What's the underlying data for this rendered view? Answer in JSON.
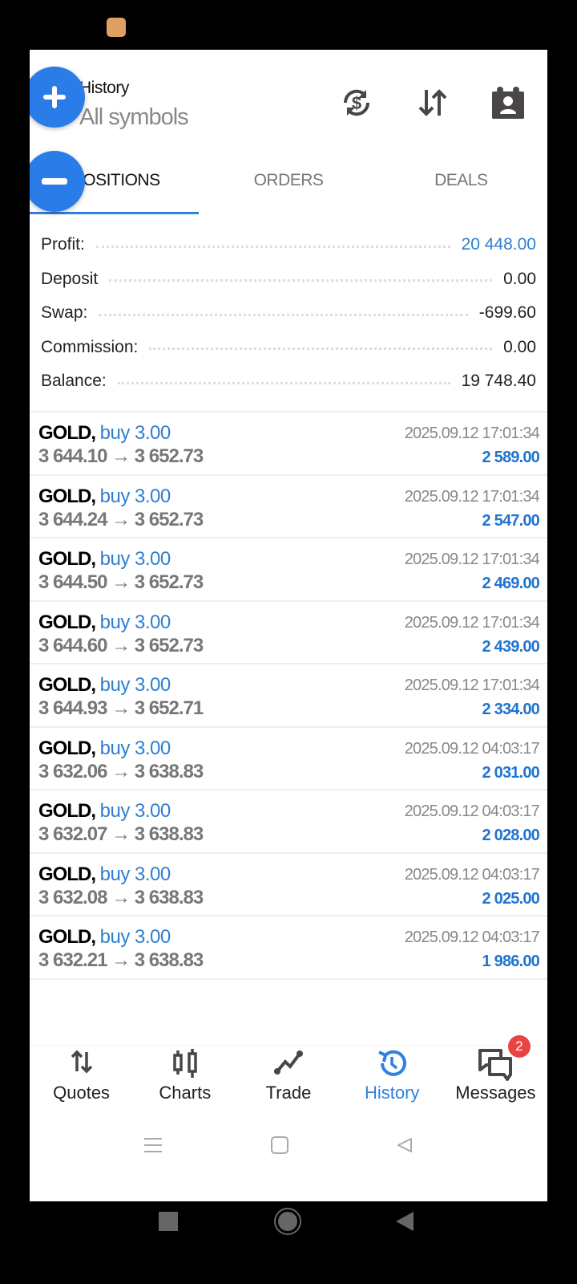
{
  "header": {
    "title": "History",
    "subtitle": "All symbols",
    "icons": [
      "currency-exchange-icon",
      "sort-icon",
      "calendar-contact-icon"
    ]
  },
  "tabs": [
    {
      "label": "POSITIONS",
      "active": true
    },
    {
      "label": "ORDERS",
      "active": false
    },
    {
      "label": "DEALS",
      "active": false
    }
  ],
  "summary": [
    {
      "label": "Profit:",
      "value": "20 448.00",
      "highlight": true
    },
    {
      "label": "Deposit",
      "value": "0.00",
      "highlight": false
    },
    {
      "label": "Swap:",
      "value": "-699.60",
      "highlight": false
    },
    {
      "label": "Commission:",
      "value": "0.00",
      "highlight": false
    },
    {
      "label": "Balance:",
      "value": "19 748.40",
      "highlight": false
    }
  ],
  "positions": [
    {
      "symbol": "GOLD,",
      "side": "buy 3.00",
      "prices": "3 644.10 → 3 652.73",
      "time": "2025.09.12 17:01:34",
      "profit": "2 589.00"
    },
    {
      "symbol": "GOLD,",
      "side": "buy 3.00",
      "prices": "3 644.24 → 3 652.73",
      "time": "2025.09.12 17:01:34",
      "profit": "2 547.00"
    },
    {
      "symbol": "GOLD,",
      "side": "buy 3.00",
      "prices": "3 644.50 → 3 652.73",
      "time": "2025.09.12 17:01:34",
      "profit": "2 469.00"
    },
    {
      "symbol": "GOLD,",
      "side": "buy 3.00",
      "prices": "3 644.60 → 3 652.73",
      "time": "2025.09.12 17:01:34",
      "profit": "2 439.00"
    },
    {
      "symbol": "GOLD,",
      "side": "buy 3.00",
      "prices": "3 644.93 → 3 652.71",
      "time": "2025.09.12 17:01:34",
      "profit": "2 334.00"
    },
    {
      "symbol": "GOLD,",
      "side": "buy 3.00",
      "prices": "3 632.06 → 3 638.83",
      "time": "2025.09.12 04:03:17",
      "profit": "2 031.00"
    },
    {
      "symbol": "GOLD,",
      "side": "buy 3.00",
      "prices": "3 632.07 → 3 638.83",
      "time": "2025.09.12 04:03:17",
      "profit": "2 028.00"
    },
    {
      "symbol": "GOLD,",
      "side": "buy 3.00",
      "prices": "3 632.08 → 3 638.83",
      "time": "2025.09.12 04:03:17",
      "profit": "2 025.00"
    },
    {
      "symbol": "GOLD,",
      "side": "buy 3.00",
      "prices": "3 632.21 → 3 638.83",
      "time": "2025.09.12 04:03:17",
      "profit": "1 986.00"
    }
  ],
  "bottom_nav": [
    {
      "label": "Quotes",
      "icon": "quotes-icon"
    },
    {
      "label": "Charts",
      "icon": "charts-icon"
    },
    {
      "label": "Trade",
      "icon": "trade-icon"
    },
    {
      "label": "History",
      "icon": "history-icon",
      "active": true
    },
    {
      "label": "Messages",
      "icon": "messages-icon",
      "badge": "2"
    }
  ],
  "colors": {
    "accent": "#2f80e0",
    "profit": "#1f74d0",
    "badge": "#e84444",
    "fab": "#2a7de8"
  }
}
